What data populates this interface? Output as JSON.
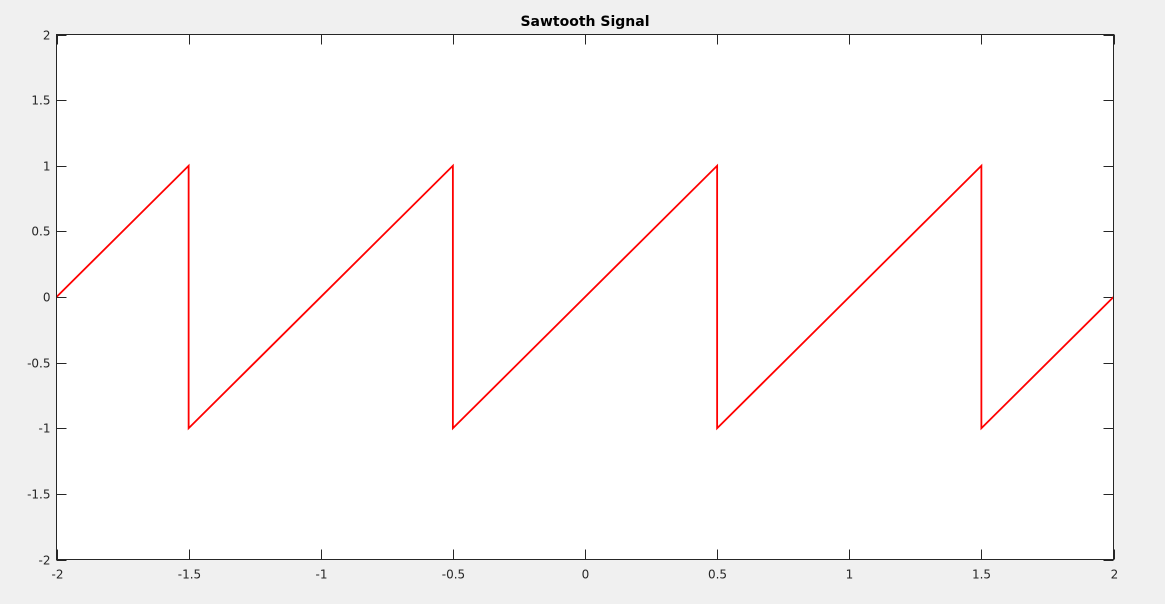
{
  "chart_data": {
    "type": "line",
    "title": "Sawtooth Signal",
    "xlabel": "",
    "ylabel": "",
    "xlim": [
      -2,
      2
    ],
    "ylim": [
      -2,
      2
    ],
    "x_ticks": [
      -2,
      -1.5,
      -1,
      -0.5,
      0,
      0.5,
      1,
      1.5,
      2
    ],
    "y_ticks": [
      -2,
      -1.5,
      -1,
      -0.5,
      0,
      0.5,
      1,
      1.5,
      2
    ],
    "x_tick_labels": [
      "-2",
      "-1.5",
      "-1",
      "-0.5",
      "0",
      "0.5",
      "1",
      "1.5",
      "2"
    ],
    "y_tick_labels": [
      "-2",
      "-1.5",
      "-1",
      "-0.5",
      "0",
      "0.5",
      "1",
      "1.5",
      "2"
    ],
    "grid": false,
    "legend": "none",
    "series": [
      {
        "color": "#ff0000",
        "x": [
          -2,
          -1.5,
          -1.5,
          -1.5,
          -0.5,
          -0.5,
          0.5,
          0.5,
          0.5,
          1.5,
          1.5,
          2
        ],
        "y": [
          0,
          1,
          0,
          -1,
          1,
          -1,
          1,
          0,
          -1,
          1,
          -1,
          0
        ]
      }
    ]
  }
}
